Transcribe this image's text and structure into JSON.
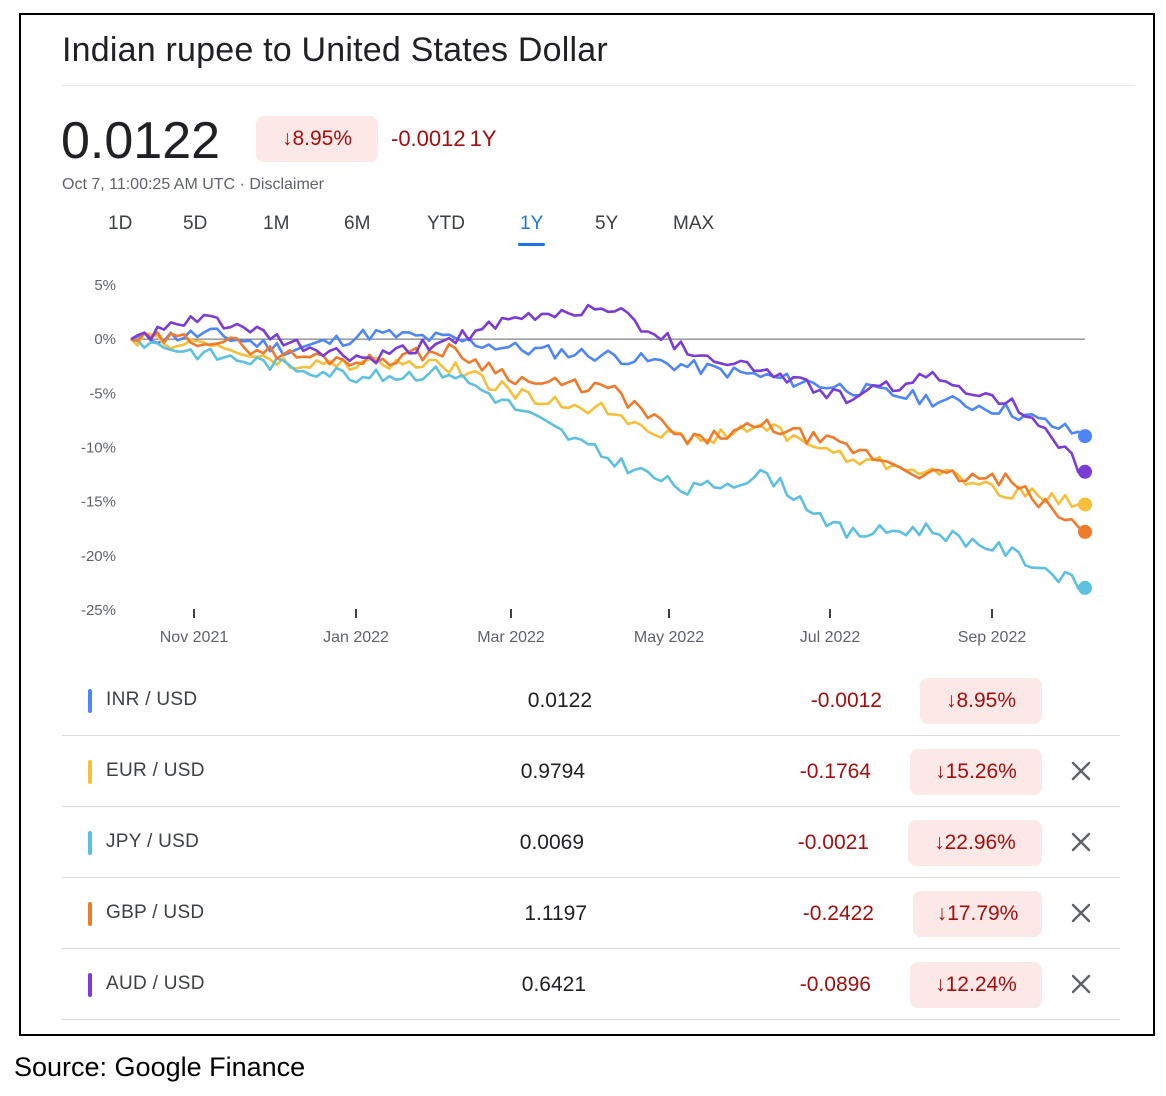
{
  "title": "Indian rupee to United States Dollar",
  "price": "0.0122",
  "header_change_pct": "↓8.95%",
  "header_change_abs": "-0.0012",
  "header_period": "1Y",
  "timestamp": "Oct 7, 11:00:25 AM UTC · Disclaimer",
  "tabs": [
    {
      "label": "1D",
      "active": false
    },
    {
      "label": "5D",
      "active": false
    },
    {
      "label": "1M",
      "active": false
    },
    {
      "label": "6M",
      "active": false
    },
    {
      "label": "YTD",
      "active": false
    },
    {
      "label": "1Y",
      "active": true
    },
    {
      "label": "5Y",
      "active": false
    },
    {
      "label": "MAX",
      "active": false
    }
  ],
  "icons": {
    "close": "close-icon",
    "arrow_down": "arrow-down-icon"
  },
  "colors": {
    "inr": "#4f86f7",
    "eur": "#f6bf3a",
    "jpy": "#5ec0df",
    "gbp": "#f07a2c",
    "aud": "#7b3cd6",
    "negative": "#a50e0e",
    "negative_bg": "#fce8e6",
    "active_tab": "#1a73e8"
  },
  "chart_data": {
    "type": "line",
    "ylabel": "",
    "xlabel": "",
    "ylim": [
      -25,
      5
    ],
    "y_ticks": [
      "5%",
      "0%",
      "-5%",
      "-10%",
      "-15%",
      "-20%",
      "-25%"
    ],
    "x_ticks": [
      "Nov 2021",
      "Jan 2022",
      "Mar 2022",
      "May 2022",
      "Jul 2022",
      "Sep 2022"
    ],
    "x": [
      "Oct 2021",
      "Nov 2021",
      "Dec 2021",
      "Jan 2022",
      "Feb 2022",
      "Mar 2022",
      "Apr 2022",
      "May 2022",
      "Jun 2022",
      "Jul 2022",
      "Aug 2022",
      "Sep 2022",
      "Oct 2022"
    ],
    "grid": false,
    "series": [
      {
        "name": "INR / USD",
        "color": "#4f86f7",
        "values": [
          0,
          0.5,
          -1,
          0.5,
          0,
          -1,
          -1.5,
          -2.5,
          -3.5,
          -4.5,
          -5.5,
          -6.5,
          -8.95
        ]
      },
      {
        "name": "EUR / USD",
        "color": "#f6bf3a",
        "values": [
          0,
          -0.5,
          -2.5,
          -2.2,
          -2.5,
          -5.5,
          -6.5,
          -9.5,
          -8,
          -11,
          -12,
          -14,
          -15.26
        ]
      },
      {
        "name": "JPY / USD",
        "color": "#5ec0df",
        "values": [
          0,
          -1.5,
          -2.5,
          -3.5,
          -3,
          -7,
          -11,
          -14,
          -12.5,
          -18,
          -17.5,
          -19.5,
          -22.96
        ]
      },
      {
        "name": "GBP / USD",
        "color": "#f07a2c",
        "values": [
          0,
          0,
          -1.5,
          -2,
          -1,
          -4,
          -4.5,
          -9.5,
          -8,
          -10,
          -12.5,
          -13,
          -17.79
        ]
      },
      {
        "name": "AUD / USD",
        "color": "#7b3cd6",
        "values": [
          0,
          2,
          -0.5,
          -2,
          0,
          2,
          3,
          -1,
          -3,
          -5.5,
          -3.5,
          -5.5,
          -12.24
        ]
      }
    ]
  },
  "table": [
    {
      "pair": "INR / USD",
      "color": "#4f86f7",
      "value": "0.0122",
      "change": "-0.0012",
      "pct": "↓8.95%",
      "removable": false
    },
    {
      "pair": "EUR / USD",
      "color": "#f6bf3a",
      "value": "0.9794",
      "change": "-0.1764",
      "pct": "↓15.26%",
      "removable": true
    },
    {
      "pair": "JPY / USD",
      "color": "#5ec0df",
      "value": "0.0069",
      "change": "-0.0021",
      "pct": "↓22.96%",
      "removable": true
    },
    {
      "pair": "GBP / USD",
      "color": "#f07a2c",
      "value": "1.1197",
      "change": "-0.2422",
      "pct": "↓17.79%",
      "removable": true
    },
    {
      "pair": "AUD / USD",
      "color": "#7b3cd6",
      "value": "0.6421",
      "change": "-0.0896",
      "pct": "↓12.24%",
      "removable": true
    }
  ],
  "source": "Source: Google Finance"
}
